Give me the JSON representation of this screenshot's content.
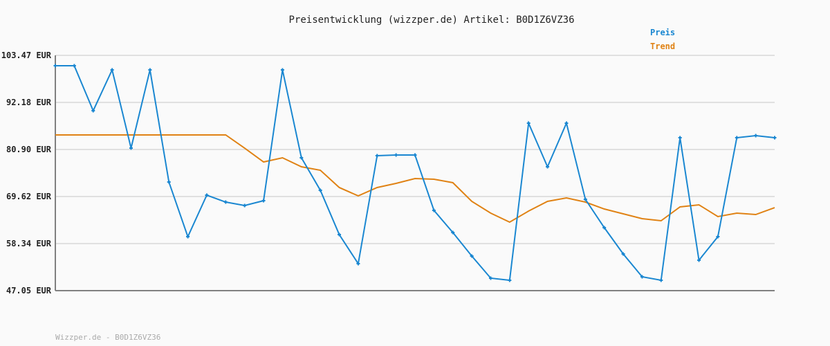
{
  "chart_data": {
    "type": "line",
    "title": "Preisentwicklung (wizzper.de) Artikel: B0D1Z6VZ36",
    "xlabel": "",
    "ylabel": "",
    "ylim": [
      47.05,
      103.47
    ],
    "y_ticks": [
      "103.47 EUR",
      "92.18 EUR",
      "80.90 EUR",
      "69.62 EUR",
      "58.34 EUR",
      "47.05 EUR"
    ],
    "y_tick_values": [
      103.47,
      92.18,
      80.9,
      69.62,
      58.34,
      47.05
    ],
    "grid": true,
    "legend": "top-right",
    "series": [
      {
        "name": "Preis",
        "color": "#1a87d1",
        "markers": true,
        "values": [
          100.98,
          100.98,
          90.2,
          99.99,
          81.23,
          99.99,
          73.1,
          59.99,
          69.95,
          68.29,
          67.46,
          68.62,
          99.99,
          78.91,
          71.11,
          60.49,
          53.52,
          79.41,
          79.57,
          79.57,
          66.3,
          60.99,
          55.35,
          50.04,
          49.54,
          87.21,
          76.75,
          87.21,
          68.95,
          62.15,
          55.85,
          50.37,
          49.54,
          83.72,
          54.35,
          59.99,
          83.72,
          84.22,
          83.72
        ]
      },
      {
        "name": "Trend",
        "color": "#e08214",
        "markers": false,
        "values": [
          84.39,
          84.39,
          84.39,
          84.39,
          84.39,
          84.39,
          84.39,
          84.39,
          84.39,
          84.39,
          81.23,
          77.91,
          78.91,
          76.75,
          75.92,
          71.78,
          69.78,
          71.78,
          72.77,
          73.93,
          73.77,
          72.94,
          68.46,
          65.64,
          63.48,
          66.13,
          68.46,
          69.29,
          68.29,
          66.63,
          65.47,
          64.31,
          63.81,
          67.13,
          67.63,
          64.81,
          65.64,
          65.3,
          66.96
        ]
      }
    ]
  },
  "footer": "Wizzper.de - B0D1Z6VZ36"
}
